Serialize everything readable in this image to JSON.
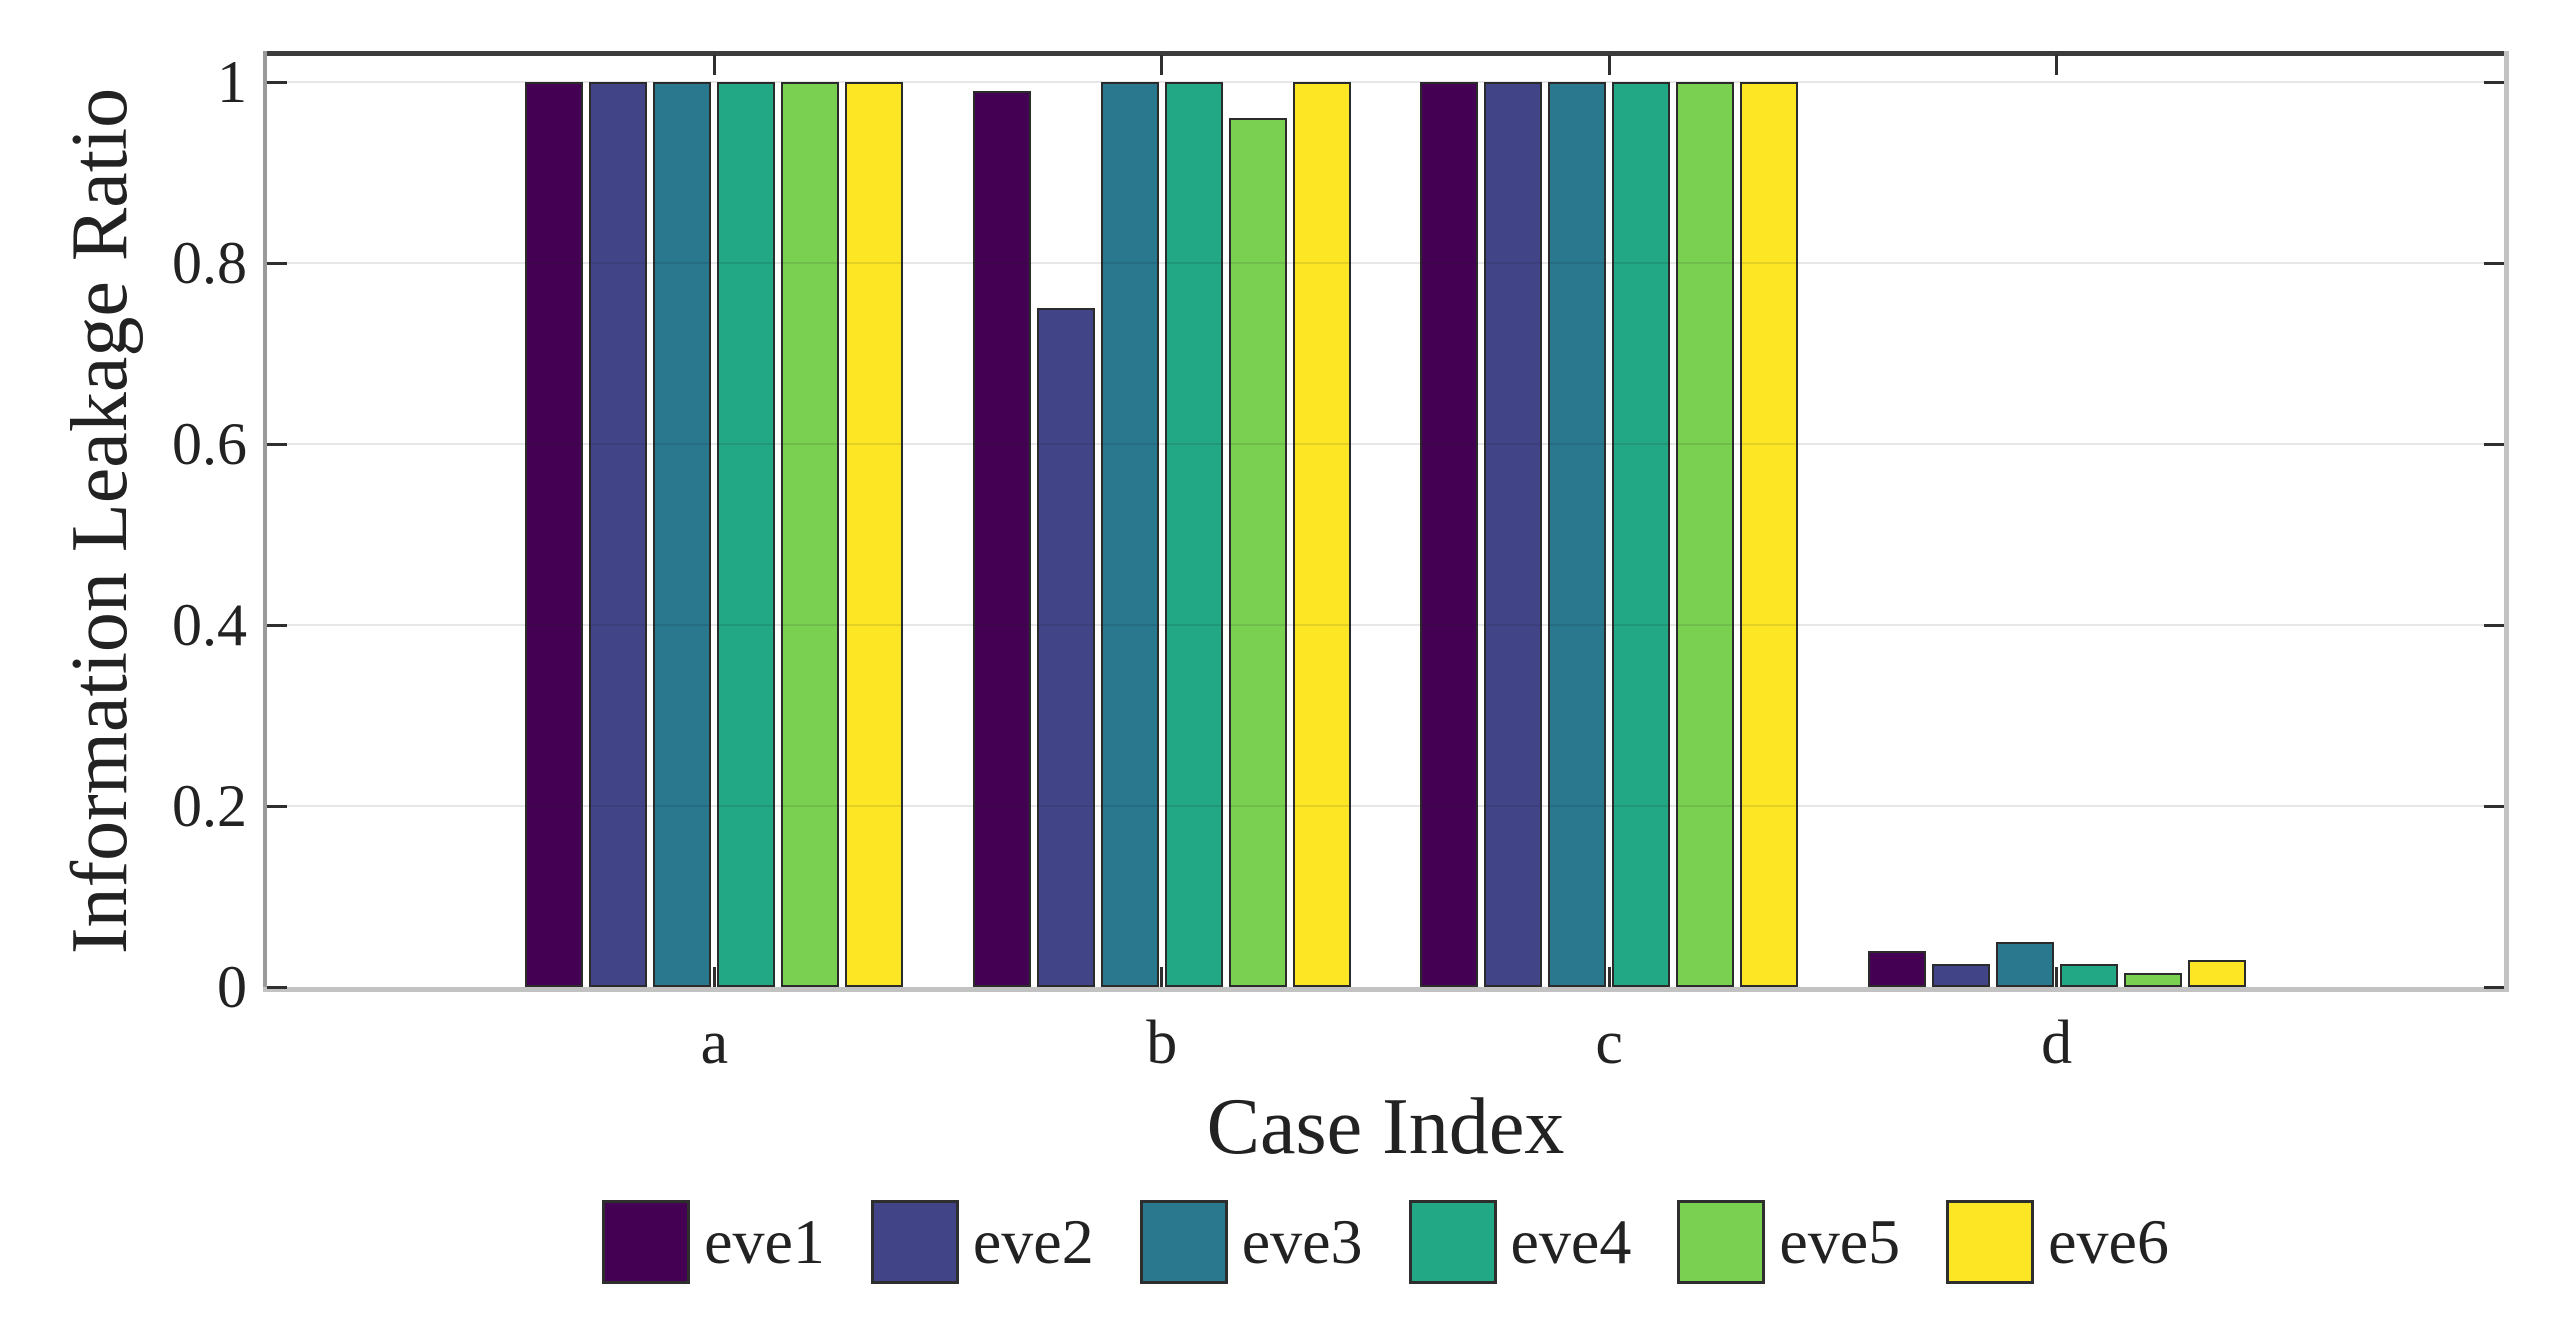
{
  "chart_data": {
    "type": "bar",
    "title": "",
    "xlabel": "Case Index",
    "ylabel": "Information Leakage Ratio",
    "categories": [
      "a",
      "b",
      "c",
      "d"
    ],
    "series": [
      {
        "name": "eve1",
        "color": "#440154",
        "values": [
          1,
          0.99,
          1,
          0.04
        ]
      },
      {
        "name": "eve2",
        "color": "#414487",
        "values": [
          1,
          0.75,
          1,
          0.025
        ]
      },
      {
        "name": "eve3",
        "color": "#2a788e",
        "values": [
          1,
          1,
          1,
          0.05
        ]
      },
      {
        "name": "eve4",
        "color": "#22a884",
        "values": [
          1,
          1,
          1,
          0.025
        ]
      },
      {
        "name": "eve5",
        "color": "#7ad151",
        "values": [
          1,
          0.96,
          1,
          0.015
        ]
      },
      {
        "name": "eve6",
        "color": "#fde725",
        "values": [
          1,
          1,
          1,
          0.03
        ]
      }
    ],
    "yticks": [
      0,
      0.2,
      0.4,
      0.6,
      0.8,
      1
    ],
    "ytick_labels": [
      "0",
      "0.2",
      "0.4",
      "0.6",
      "0.8",
      "1"
    ],
    "ylim": [
      0,
      1.03
    ],
    "grid": "horizontal",
    "grid_color": "#e6e6e6",
    "axis_text_color": "#222222",
    "bar_outline_color": "#2b2b2b",
    "legend_position": "bottom"
  }
}
